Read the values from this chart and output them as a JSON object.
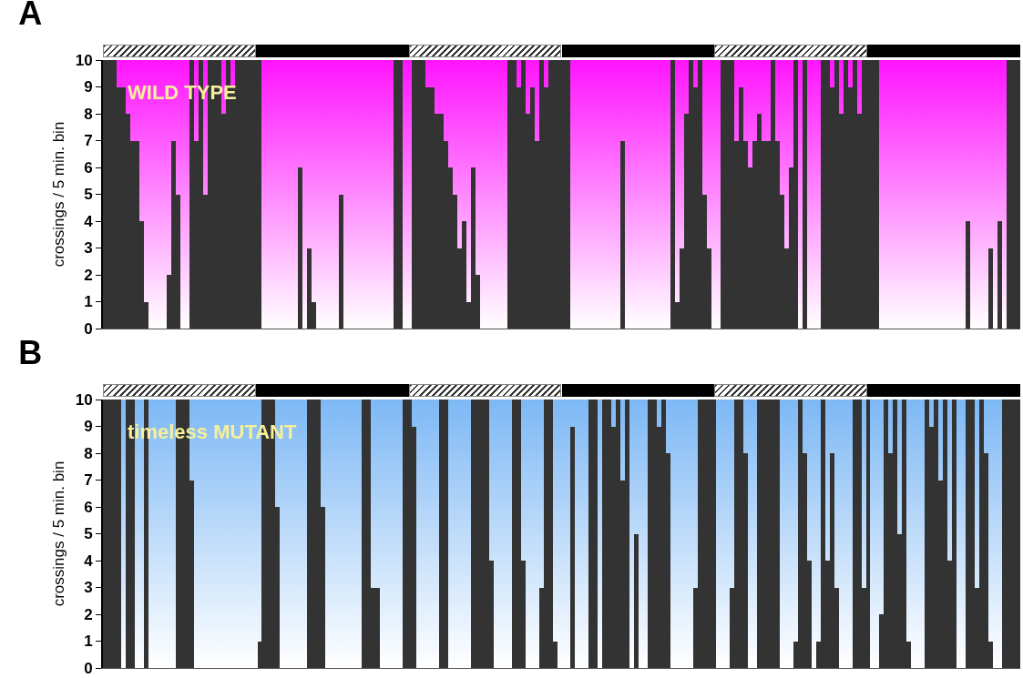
{
  "chart_data": [
    {
      "type": "bar",
      "title": "A",
      "ylabel": "crossings / 5 min. bin",
      "annotations": [
        "WILD TYPE"
      ],
      "color": "#333333",
      "ylim": [
        0,
        10
      ],
      "yticks": [
        0,
        1,
        2,
        3,
        4,
        5,
        6,
        7,
        8,
        9,
        10
      ],
      "tick_labels": "y",
      "categories": [
        null,
        null,
        null,
        null,
        null,
        null,
        null,
        null,
        null,
        null,
        null,
        null,
        null,
        null,
        null,
        null,
        null,
        null,
        null,
        null,
        null,
        null,
        null,
        null,
        null,
        null,
        null,
        null,
        null,
        null,
        null,
        null,
        null,
        null,
        null,
        null,
        null,
        null,
        null,
        null,
        null,
        null,
        null,
        null,
        null,
        null,
        null,
        null,
        null,
        null,
        null,
        null,
        null,
        null,
        null,
        null,
        null,
        null,
        null,
        null,
        null,
        null,
        null,
        null,
        null,
        null,
        null,
        null,
        null,
        null,
        null,
        null,
        null,
        null,
        null,
        null,
        null,
        null,
        null,
        null,
        null,
        null,
        null,
        null,
        null,
        null,
        null,
        null,
        null,
        null,
        null,
        null,
        null,
        null,
        null,
        null,
        null,
        null,
        null,
        null,
        null,
        null,
        null,
        null,
        null,
        null,
        null,
        null,
        null,
        null,
        null,
        null,
        null,
        null,
        null,
        null,
        null,
        null,
        null,
        null,
        null,
        null,
        null,
        null,
        null,
        null,
        null,
        null,
        null,
        null,
        null,
        null,
        null,
        null,
        null,
        null,
        null,
        null,
        null,
        null,
        null,
        null,
        null,
        null,
        null,
        null,
        null,
        null,
        null,
        null,
        null,
        null,
        null,
        null,
        null,
        null,
        null,
        null,
        null,
        null,
        null,
        null,
        null,
        null,
        null,
        null,
        null,
        null,
        null,
        null,
        null,
        null,
        null,
        null,
        null,
        null,
        null,
        null,
        null,
        null,
        null,
        null,
        null,
        null,
        null,
        null,
        null,
        null,
        null,
        null,
        null,
        null,
        null,
        null,
        null,
        null,
        null,
        null,
        null,
        null,
        null,
        null
      ],
      "values": [
        10,
        10,
        10,
        9,
        9,
        8,
        7,
        7,
        4,
        1,
        0,
        0,
        0,
        0,
        2,
        7,
        5,
        0,
        0,
        10,
        7,
        10,
        5,
        10,
        10,
        10,
        8,
        10,
        9,
        10,
        10,
        10,
        10,
        10,
        10,
        0,
        0,
        0,
        0,
        0,
        0,
        0,
        0,
        6,
        0,
        3,
        1,
        0,
        0,
        0,
        0,
        0,
        5,
        0,
        0,
        0,
        0,
        0,
        0,
        0,
        0,
        0,
        0,
        0,
        10,
        10,
        0,
        0,
        10,
        10,
        10,
        9,
        9,
        8,
        8,
        7,
        6,
        5,
        3,
        4,
        1,
        6,
        2,
        0,
        0,
        0,
        0,
        0,
        0,
        10,
        10,
        9,
        10,
        8,
        9,
        7,
        10,
        9,
        10,
        10,
        10,
        10,
        10,
        0,
        0,
        0,
        0,
        0,
        0,
        0,
        0,
        0,
        0,
        0,
        7,
        0,
        0,
        0,
        0,
        0,
        0,
        0,
        0,
        0,
        0,
        10,
        1,
        3,
        8,
        10,
        9,
        10,
        5,
        3,
        0,
        0,
        10,
        10,
        10,
        7,
        9,
        7,
        6,
        7,
        8,
        7,
        7,
        10,
        7,
        5,
        3,
        6,
        10,
        0,
        10,
        0,
        0,
        0,
        10,
        10,
        9,
        10,
        8,
        10,
        9,
        10,
        8,
        10,
        10,
        10,
        10,
        0,
        0,
        0,
        0,
        0,
        0,
        0,
        0,
        0,
        0,
        0,
        0,
        0,
        0,
        0,
        0,
        0,
        0,
        0,
        4,
        0,
        0,
        0,
        0,
        3,
        0,
        4,
        0,
        10,
        10,
        10
      ]
    },
    {
      "type": "bar",
      "title": "B",
      "ylabel": "crossings / 5 min. bin",
      "annotations": [
        "timeless MUTANT"
      ],
      "color": "#333333",
      "ylim": [
        0,
        10
      ],
      "yticks": [
        0,
        1,
        2,
        3,
        4,
        5,
        6,
        7,
        8,
        9,
        10
      ],
      "tick_labels": "y",
      "categories": [
        null,
        null,
        null,
        null,
        null,
        null,
        null,
        null,
        null,
        null,
        null,
        null,
        null,
        null,
        null,
        null,
        null,
        null,
        null,
        null,
        null,
        null,
        null,
        null,
        null,
        null,
        null,
        null,
        null,
        null,
        null,
        null,
        null,
        null,
        null,
        null,
        null,
        null,
        null,
        null,
        null,
        null,
        null,
        null,
        null,
        null,
        null,
        null,
        null,
        null,
        null,
        null,
        null,
        null,
        null,
        null,
        null,
        null,
        null,
        null,
        null,
        null,
        null,
        null,
        null,
        null,
        null,
        null,
        null,
        null,
        null,
        null,
        null,
        null,
        null,
        null,
        null,
        null,
        null,
        null,
        null,
        null,
        null,
        null,
        null,
        null,
        null,
        null,
        null,
        null,
        null,
        null,
        null,
        null,
        null,
        null,
        null,
        null,
        null,
        null,
        null,
        null,
        null,
        null,
        null,
        null,
        null,
        null,
        null,
        null,
        null,
        null,
        null,
        null,
        null,
        null,
        null,
        null,
        null,
        null,
        null,
        null,
        null,
        null,
        null,
        null,
        null,
        null,
        null,
        null,
        null,
        null,
        null,
        null,
        null,
        null,
        null,
        null,
        null,
        null,
        null,
        null,
        null,
        null,
        null,
        null,
        null,
        null,
        null,
        null,
        null,
        null,
        null,
        null,
        null,
        null,
        null,
        null,
        null,
        null,
        null,
        null,
        null,
        null,
        null,
        null,
        null,
        null,
        null,
        null,
        null,
        null,
        null,
        null,
        null,
        null,
        null,
        null,
        null,
        null,
        null,
        null,
        null,
        null,
        null,
        null,
        null,
        null,
        null,
        null,
        null,
        null,
        null,
        null,
        null,
        null,
        null,
        null,
        null,
        null,
        null,
        null
      ],
      "values": [
        10,
        10,
        10,
        10,
        0,
        10,
        10,
        0,
        0,
        10,
        0,
        0,
        0,
        0,
        0,
        0,
        10,
        10,
        10,
        7,
        0,
        0,
        0,
        0,
        0,
        0,
        0,
        0,
        0,
        0,
        0,
        0,
        0,
        0,
        1,
        10,
        10,
        10,
        6,
        0,
        0,
        0,
        0,
        0,
        0,
        10,
        10,
        10,
        6,
        0,
        0,
        0,
        0,
        0,
        0,
        0,
        0,
        10,
        10,
        3,
        3,
        0,
        0,
        0,
        0,
        0,
        10,
        10,
        9,
        0,
        0,
        0,
        0,
        0,
        10,
        10,
        0,
        0,
        0,
        0,
        0,
        10,
        10,
        10,
        10,
        4,
        0,
        0,
        0,
        0,
        10,
        10,
        4,
        0,
        0,
        0,
        3,
        10,
        10,
        1,
        0,
        0,
        0,
        9,
        0,
        0,
        0,
        10,
        10,
        0,
        10,
        10,
        9,
        10,
        7,
        10,
        0,
        5,
        0,
        0,
        10,
        10,
        9,
        10,
        8,
        0,
        0,
        0,
        0,
        0,
        3,
        10,
        10,
        10,
        10,
        0,
        0,
        0,
        3,
        10,
        10,
        8,
        0,
        0,
        10,
        10,
        10,
        10,
        10,
        0,
        0,
        0,
        1,
        10,
        8,
        4,
        0,
        1,
        10,
        4,
        8,
        3,
        0,
        0,
        0,
        10,
        10,
        3,
        10,
        0,
        0,
        2,
        10,
        8,
        10,
        5,
        10,
        1,
        0,
        0,
        0,
        10,
        9,
        10,
        7,
        10,
        4,
        10,
        0,
        0,
        10,
        10,
        3,
        10,
        8,
        1,
        0,
        0,
        10,
        10,
        10,
        10
      ]
    }
  ]
}
